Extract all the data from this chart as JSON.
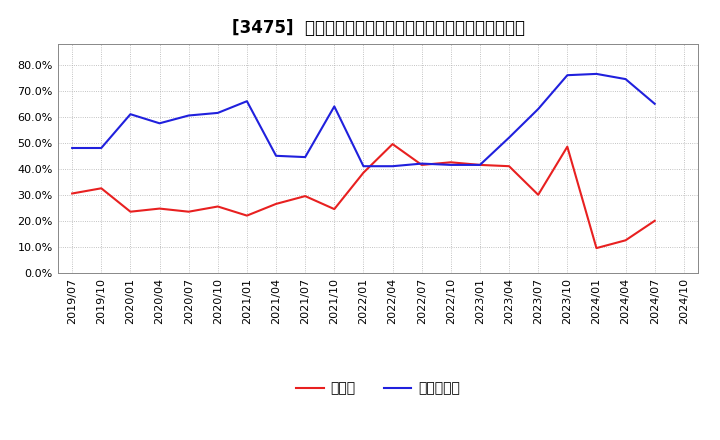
{
  "title": "[3475]  現預金、有利子負債の総資産に対する比率の推移",
  "dates": [
    "2019/07",
    "2019/10",
    "2020/01",
    "2020/04",
    "2020/07",
    "2020/10",
    "2021/01",
    "2021/04",
    "2021/07",
    "2021/10",
    "2022/01",
    "2022/04",
    "2022/07",
    "2022/10",
    "2023/01",
    "2023/04",
    "2023/07",
    "2023/10",
    "2024/01",
    "2024/04",
    "2024/07",
    "2024/10"
  ],
  "cash": [
    0.305,
    0.325,
    0.235,
    0.247,
    0.235,
    0.255,
    0.22,
    0.265,
    0.295,
    0.245,
    0.385,
    0.495,
    0.415,
    0.425,
    0.415,
    0.41,
    0.3,
    0.485,
    0.095,
    0.125,
    0.2,
    null
  ],
  "debt": [
    0.48,
    0.48,
    0.61,
    0.575,
    0.605,
    0.615,
    0.66,
    0.45,
    0.445,
    0.64,
    0.41,
    0.41,
    0.42,
    0.415,
    0.415,
    0.52,
    0.63,
    0.76,
    0.765,
    0.745,
    0.65,
    null
  ],
  "cash_color": "#e82020",
  "debt_color": "#2020dd",
  "grid_color": "#b0b0b0",
  "bg_color": "#ffffff",
  "legend_cash": "現預金",
  "legend_debt": "有利子負債",
  "title_fontsize": 12,
  "tick_fontsize": 8,
  "legend_fontsize": 10,
  "ylim": [
    0.0,
    0.88
  ],
  "yticks": [
    0.0,
    0.1,
    0.2,
    0.3,
    0.4,
    0.5,
    0.6,
    0.7,
    0.8
  ]
}
